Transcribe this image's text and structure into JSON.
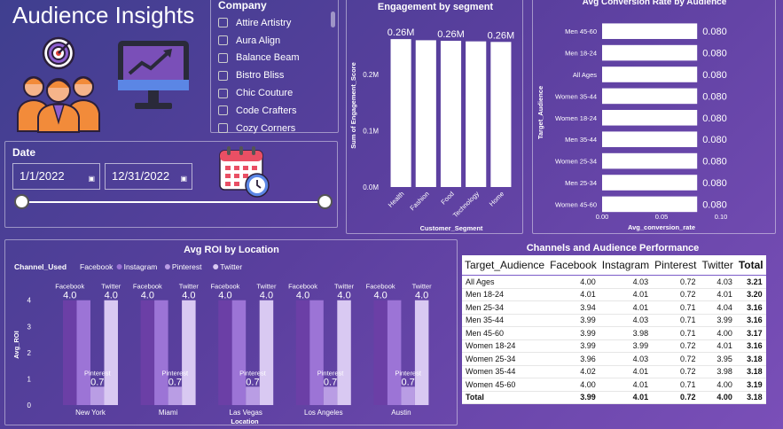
{
  "page": {
    "title": "Audience Insights"
  },
  "icons": [
    "audience-group-icon",
    "target-icon",
    "monitor-trend-icon",
    "calendar-clock-icon"
  ],
  "company_slicer": {
    "header": "Company",
    "items": [
      "Attire Artistry",
      "Aura Align",
      "Balance Beam",
      "Bistro Bliss",
      "Chic Couture",
      "Code Crafters",
      "Cozy Corners"
    ]
  },
  "date_slicer": {
    "header": "Date",
    "start": "1/1/2022",
    "end": "12/31/2022"
  },
  "chart_data": [
    {
      "id": "engagement",
      "type": "bar",
      "title": "Engagement by segment",
      "xlabel": "Customer_Segment",
      "ylabel": "Sum of Engagement_Score",
      "categories": [
        "Health",
        "Fashion",
        "Food",
        "Technology",
        "Home"
      ],
      "values": [
        263000,
        261000,
        260000,
        259000,
        258000
      ],
      "data_labels": [
        "0.26M",
        "",
        "0.26M",
        "",
        "0.26M"
      ],
      "yticks": [
        "0.0M",
        "0.1M",
        "0.2M"
      ],
      "ylim": [
        0,
        290000
      ],
      "color": "#ffffff"
    },
    {
      "id": "conversion",
      "type": "bar",
      "orientation": "horizontal",
      "title": "Avg Conversion Rate by Audience",
      "xlabel": "Avg_conversion_rate",
      "ylabel": "Target_Audience",
      "categories": [
        "Men 45-60",
        "Men 18-24",
        "All Ages",
        "Women 35-44",
        "Women 18-24",
        "Men 35-44",
        "Women 25-34",
        "Men 25-34",
        "Women 45-60"
      ],
      "values": [
        0.08,
        0.08,
        0.08,
        0.08,
        0.08,
        0.08,
        0.08,
        0.08,
        0.08
      ],
      "data_labels": [
        "0.080",
        "0.080",
        "0.080",
        "0.080",
        "0.080",
        "0.080",
        "0.080",
        "0.080",
        "0.080"
      ],
      "xticks": [
        "0.00",
        "0.05",
        "0.10"
      ],
      "xlim": [
        0,
        0.1
      ],
      "color": "#ffffff"
    },
    {
      "id": "roi",
      "type": "bar",
      "title": "Avg ROI by Location",
      "xlabel": "Location",
      "ylabel": "Avg_ROI",
      "legend_title": "Channel_Used",
      "legend_position": "top-left",
      "categories": [
        "New York",
        "Miami",
        "Las Vegas",
        "Los Angeles",
        "Austin"
      ],
      "series": [
        {
          "name": "Facebook",
          "color": "#6b3fa6",
          "values": [
            4.0,
            4.0,
            4.0,
            4.0,
            4.0
          ]
        },
        {
          "name": "Instagram",
          "color": "#9c74d6",
          "values": [
            4.0,
            4.0,
            4.0,
            4.0,
            4.0
          ]
        },
        {
          "name": "Pinterest",
          "color": "#b99de4",
          "values": [
            0.7,
            0.7,
            0.7,
            0.7,
            0.7
          ]
        },
        {
          "name": "Twitter",
          "color": "#d9c9f2",
          "values": [
            4.0,
            4.0,
            4.0,
            4.0,
            4.0
          ]
        }
      ],
      "label_values": [
        "4.0",
        "0.7",
        "4.0"
      ],
      "yticks": [
        "0",
        "1",
        "2",
        "3",
        "4"
      ],
      "ylim": [
        0,
        4.6
      ]
    },
    {
      "id": "performance",
      "type": "table",
      "title": "Channels and Audience Performance",
      "columns": [
        "Target_Audience",
        "Facebook",
        "Instagram",
        "Pinterest",
        "Twitter",
        "Total"
      ],
      "rows": [
        [
          "All Ages",
          "4.00",
          "4.03",
          "0.72",
          "4.03",
          "3.21"
        ],
        [
          "Men 18-24",
          "4.01",
          "4.01",
          "0.72",
          "4.01",
          "3.20"
        ],
        [
          "Men 25-34",
          "3.94",
          "4.01",
          "0.71",
          "4.04",
          "3.16"
        ],
        [
          "Men 35-44",
          "3.99",
          "4.03",
          "0.71",
          "3.99",
          "3.16"
        ],
        [
          "Men 45-60",
          "3.99",
          "3.98",
          "0.71",
          "4.00",
          "3.17"
        ],
        [
          "Women 18-24",
          "3.99",
          "3.99",
          "0.72",
          "4.01",
          "3.16"
        ],
        [
          "Women 25-34",
          "3.96",
          "4.03",
          "0.72",
          "3.95",
          "3.18"
        ],
        [
          "Women 35-44",
          "4.02",
          "4.01",
          "0.72",
          "3.98",
          "3.18"
        ],
        [
          "Women 45-60",
          "4.00",
          "4.01",
          "0.71",
          "4.00",
          "3.19"
        ]
      ],
      "total_row": [
        "Total",
        "3.99",
        "4.01",
        "0.72",
        "4.00",
        "3.18"
      ]
    }
  ]
}
